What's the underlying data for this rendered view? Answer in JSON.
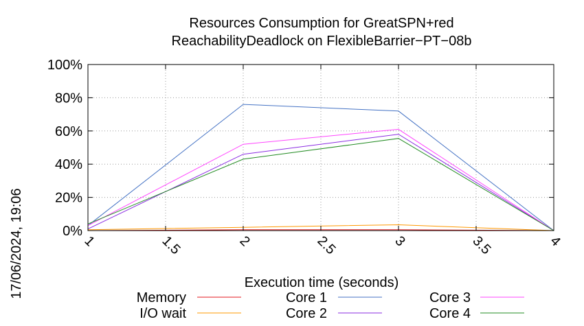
{
  "chart_data": {
    "type": "line",
    "title": [
      "Resources Consumption for GreatSPN+red",
      "ReachabilityDeadlock on FlexibleBarrier−PT−08b"
    ],
    "xlabel": "Execution time (seconds)",
    "ylabel": "",
    "side_label": "17/06/2024, 19:06",
    "xlim": [
      1,
      4
    ],
    "ylim": [
      0,
      100
    ],
    "x_ticks": [
      1,
      1.5,
      2,
      2.5,
      3,
      3.5,
      4
    ],
    "x_tick_labels": [
      "1",
      "1.5",
      "2",
      "2.5",
      "3",
      "3.5",
      "4"
    ],
    "y_ticks": [
      0,
      20,
      40,
      60,
      80,
      100
    ],
    "y_tick_labels": [
      "0%",
      "20%",
      "40%",
      "60%",
      "80%",
      "100%"
    ],
    "grid": true,
    "legend_position": "bottom",
    "x": [
      1,
      2,
      3,
      4
    ],
    "series": [
      {
        "name": "Memory",
        "color": "#e41a1c",
        "values": [
          0,
          0.5,
          0.5,
          0
        ]
      },
      {
        "name": "I/O wait",
        "color": "#ff9900",
        "values": [
          0.5,
          2,
          3.5,
          0
        ]
      },
      {
        "name": "Core 1",
        "color": "#4472c4",
        "values": [
          3,
          76,
          72,
          0
        ]
      },
      {
        "name": "Core 2",
        "color": "#8a2be2",
        "values": [
          1,
          46,
          58,
          0
        ]
      },
      {
        "name": "Core 3",
        "color": "#ff44ff",
        "values": [
          3,
          52,
          61,
          0
        ]
      },
      {
        "name": "Core 4",
        "color": "#228b22",
        "values": [
          4,
          43,
          55.5,
          0
        ]
      }
    ]
  }
}
